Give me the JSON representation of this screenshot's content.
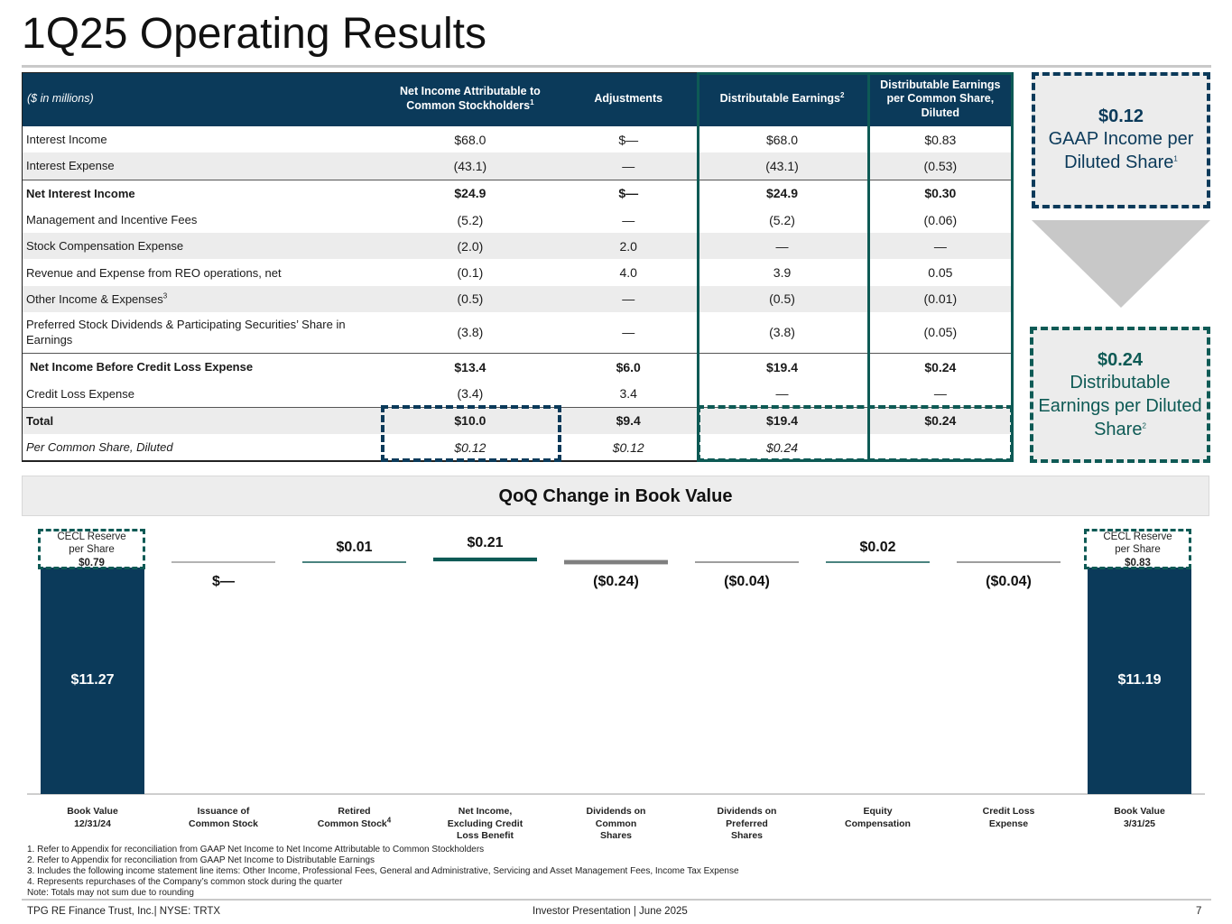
{
  "title": "1Q25 Operating Results",
  "table": {
    "headers": {
      "label": "($ in millions)",
      "net_income": "Net Income Attributable to Common Stockholders",
      "net_income_sup": "1",
      "adjustments": "Adjustments",
      "de": "Distributable Earnings",
      "de_sup": "2",
      "de_per_share": "Distributable Earnings per Common Share, Diluted"
    },
    "rows": [
      {
        "label": "Interest Income",
        "sup": "",
        "ni": "$68.0",
        "adj": "$—",
        "de": "$68.0",
        "deps": "$0.83"
      },
      {
        "label": "Interest Expense",
        "sup": "",
        "ni": "(43.1)",
        "adj": "—",
        "de": "(43.1)",
        "deps": "(0.53)"
      },
      {
        "label": "Net Interest Income",
        "sup": "",
        "ni": "$24.9",
        "adj": "$—",
        "de": "$24.9",
        "deps": "$0.30"
      },
      {
        "label": "Management and Incentive Fees",
        "sup": "",
        "ni": "(5.2)",
        "adj": "—",
        "de": "(5.2)",
        "deps": "(0.06)"
      },
      {
        "label": "Stock Compensation Expense",
        "sup": "",
        "ni": "(2.0)",
        "adj": "2.0",
        "de": "—",
        "deps": "—"
      },
      {
        "label": "Revenue and Expense from REO operations, net",
        "sup": "",
        "ni": "(0.1)",
        "adj": "4.0",
        "de": "3.9",
        "deps": "0.05"
      },
      {
        "label": "Other Income & Expenses",
        "sup": "3",
        "ni": "(0.5)",
        "adj": "—",
        "de": "(0.5)",
        "deps": "(0.01)"
      },
      {
        "label": "Preferred Stock Dividends & Participating Securities’ Share in Earnings",
        "sup": "",
        "ni": "(3.8)",
        "adj": "—",
        "de": "(3.8)",
        "deps": "(0.05)"
      },
      {
        "label": "Net Income Before Credit Loss Expense",
        "sup": "",
        "ni": "$13.4",
        "adj": "$6.0",
        "de": "$19.4",
        "deps": "$0.24"
      },
      {
        "label": "Credit Loss Expense",
        "sup": "",
        "ni": "(3.4)",
        "adj": "3.4",
        "de": "—",
        "deps": "—"
      },
      {
        "label": "Total",
        "sup": "",
        "ni": "$10.0",
        "adj": "$9.4",
        "de": "$19.4",
        "deps": "$0.24"
      },
      {
        "label": "Per Common Share, Diluted",
        "sup": "",
        "ni": "$0.12",
        "adj": "$0.12",
        "de": "$0.24",
        "deps": ""
      }
    ]
  },
  "callouts": {
    "gaap": {
      "amount": "$0.12",
      "text": "GAAP Income per Diluted Share",
      "sup": "1"
    },
    "de": {
      "amount": "$0.24",
      "text": "Distributable Earnings per Diluted Share",
      "sup": "2"
    }
  },
  "chart_header": "QoQ Change in Book Value",
  "chart_data": {
    "type": "bar",
    "subtype": "waterfall",
    "title": "QoQ Change in Book Value",
    "categories": [
      "Book Value 12/31/24",
      "Issuance of Common Stock",
      "Retired Common Stock",
      "Net Income, Excluding Credit Loss Benefit",
      "Dividends on Common Shares",
      "Dividends on Preferred Shares",
      "Equity Compensation",
      "Credit Loss Expense",
      "Book Value 3/31/25"
    ],
    "category_lines": [
      [
        "Book Value",
        "12/31/24"
      ],
      [
        "Issuance of",
        "Common Stock"
      ],
      [
        "Retired",
        "Common Stock"
      ],
      [
        "Net Income,",
        "Excluding Credit",
        "Loss Benefit"
      ],
      [
        "Dividends on",
        "Common",
        "Shares"
      ],
      [
        "Dividends on",
        "Preferred",
        "Shares"
      ],
      [
        "Equity",
        "Compensation"
      ],
      [
        "Credit Loss",
        "Expense"
      ],
      [
        "Book Value",
        "3/31/25"
      ]
    ],
    "category_sups": [
      "",
      "",
      "4",
      "",
      "",
      "",
      "",
      "",
      ""
    ],
    "values": [
      11.27,
      0.0,
      0.01,
      0.21,
      -0.24,
      -0.04,
      0.02,
      -0.04,
      11.19
    ],
    "value_labels": [
      "$11.27",
      "$—",
      "$0.01",
      "$0.21",
      "($0.24)",
      "($0.04)",
      "$0.02",
      "($0.04)",
      "$11.19"
    ],
    "kinds": [
      "total",
      "delta",
      "delta",
      "delta",
      "delta",
      "delta",
      "delta",
      "delta",
      "total"
    ],
    "colors": {
      "total": "#0b3a5a",
      "increase": "#0e5a55",
      "decrease": "#7f7f7f",
      "neutral": "#9a9a9a"
    }
  },
  "cecl": [
    {
      "line1": "CECL Reserve",
      "line2": "per Share",
      "value": "$0.79"
    },
    {
      "line1": "CECL Reserve",
      "line2": "per Share",
      "value": "$0.83"
    }
  ],
  "footnotes": [
    "1. Refer to Appendix for reconciliation from GAAP Net Income  to Net Income  Attributable to Common Stockholders",
    "2. Refer to Appendix for reconciliation from GAAP Net Income  to Distributable Earnings",
    "3. Includes the following income statement line items: Other Income, Professional Fees, General and Administrative, Servicing and Asset Management Fees, Income Tax Expense",
    "4. Represents repurchases of the Company’s common stock during the quarter",
    "Note: Totals may not sum due to rounding"
  ],
  "footer": {
    "left": "TPG RE Finance Trust, Inc.| NYSE: TRTX",
    "center": "Investor Presentation | June 2025",
    "page": "7"
  }
}
